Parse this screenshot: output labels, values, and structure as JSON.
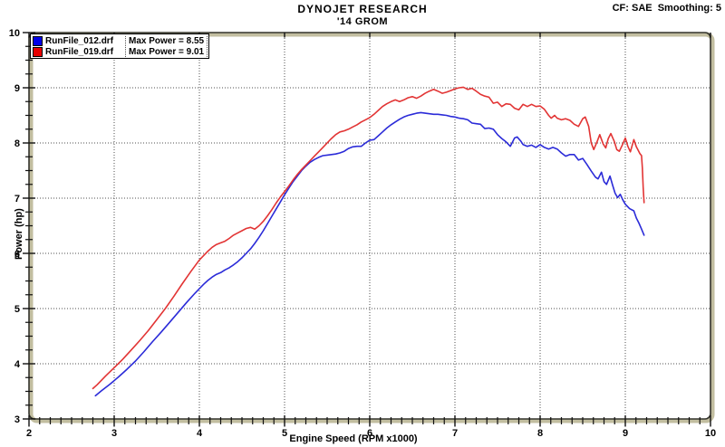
{
  "header": {
    "correction": "CF: SAE  Smoothing: 5"
  },
  "legend": {
    "entries": [
      {
        "file": "RunFile_012.drf",
        "max_power": "Max Power = 8.55",
        "swatch_color": "#0000e8"
      },
      {
        "file": "RunFile_019.drf",
        "max_power": "Max Power = 9.01",
        "swatch_color": "#e80000"
      }
    ]
  },
  "colors": {
    "background": "#ffffff",
    "frame_tan": "#c2bea0",
    "frame_dark": "#33332c",
    "grid": "#4f4f4f",
    "tick": "#111111",
    "text": "#000000",
    "blue_curve": "#2b2bd8",
    "red_curve": "#e23434"
  },
  "chart_data": {
    "type": "line",
    "title": "DYNOJET RESEARCH",
    "subtitle": "'14 GROM",
    "xlabel": "Engine Speed (RPM x1000)",
    "ylabel": "Power (hp)",
    "xlim": [
      2,
      10
    ],
    "ylim": [
      3,
      10
    ],
    "xticks": [
      2,
      3,
      4,
      5,
      6,
      7,
      8,
      9,
      10
    ],
    "yticks": [
      3,
      4,
      5,
      6,
      7,
      8,
      9,
      10
    ],
    "x_minor_step": 0.125,
    "y_minor_step": 0.25,
    "grid": "dotted-at-major-ticks",
    "legend_position": "top-left",
    "series": [
      {
        "name": "RunFile_012.drf",
        "max_power_hp": 8.55,
        "color": "#2b2bd8",
        "points": [
          [
            2.78,
            3.42
          ],
          [
            2.85,
            3.51
          ],
          [
            2.95,
            3.63
          ],
          [
            3.05,
            3.76
          ],
          [
            3.15,
            3.9
          ],
          [
            3.25,
            4.05
          ],
          [
            3.35,
            4.22
          ],
          [
            3.45,
            4.4
          ],
          [
            3.55,
            4.57
          ],
          [
            3.65,
            4.75
          ],
          [
            3.75,
            4.93
          ],
          [
            3.85,
            5.11
          ],
          [
            3.95,
            5.28
          ],
          [
            4.0,
            5.36
          ],
          [
            4.05,
            5.44
          ],
          [
            4.1,
            5.51
          ],
          [
            4.15,
            5.57
          ],
          [
            4.2,
            5.62
          ],
          [
            4.25,
            5.65
          ],
          [
            4.3,
            5.7
          ],
          [
            4.35,
            5.74
          ],
          [
            4.4,
            5.79
          ],
          [
            4.45,
            5.85
          ],
          [
            4.5,
            5.92
          ],
          [
            4.55,
            6.0
          ],
          [
            4.6,
            6.08
          ],
          [
            4.65,
            6.18
          ],
          [
            4.7,
            6.29
          ],
          [
            4.75,
            6.41
          ],
          [
            4.8,
            6.54
          ],
          [
            4.85,
            6.67
          ],
          [
            4.9,
            6.8
          ],
          [
            4.95,
            6.93
          ],
          [
            5.0,
            7.06
          ],
          [
            5.05,
            7.18
          ],
          [
            5.1,
            7.3
          ],
          [
            5.15,
            7.4
          ],
          [
            5.2,
            7.5
          ],
          [
            5.25,
            7.58
          ],
          [
            5.3,
            7.65
          ],
          [
            5.35,
            7.7
          ],
          [
            5.4,
            7.74
          ],
          [
            5.45,
            7.77
          ],
          [
            5.5,
            7.78
          ],
          [
            5.55,
            7.79
          ],
          [
            5.6,
            7.8
          ],
          [
            5.65,
            7.82
          ],
          [
            5.7,
            7.85
          ],
          [
            5.75,
            7.9
          ],
          [
            5.8,
            7.93
          ],
          [
            5.85,
            7.94
          ],
          [
            5.9,
            7.94
          ],
          [
            5.95,
            8.0
          ],
          [
            6.0,
            8.05
          ],
          [
            6.05,
            8.06
          ],
          [
            6.1,
            8.13
          ],
          [
            6.15,
            8.2
          ],
          [
            6.2,
            8.27
          ],
          [
            6.25,
            8.33
          ],
          [
            6.3,
            8.38
          ],
          [
            6.35,
            8.43
          ],
          [
            6.4,
            8.47
          ],
          [
            6.45,
            8.5
          ],
          [
            6.5,
            8.52
          ],
          [
            6.55,
            8.54
          ],
          [
            6.6,
            8.55
          ],
          [
            6.65,
            8.54
          ],
          [
            6.7,
            8.53
          ],
          [
            6.75,
            8.52
          ],
          [
            6.8,
            8.52
          ],
          [
            6.85,
            8.51
          ],
          [
            6.9,
            8.5
          ],
          [
            6.95,
            8.48
          ],
          [
            7.0,
            8.47
          ],
          [
            7.05,
            8.45
          ],
          [
            7.1,
            8.44
          ],
          [
            7.15,
            8.42
          ],
          [
            7.2,
            8.36
          ],
          [
            7.25,
            8.35
          ],
          [
            7.3,
            8.34
          ],
          [
            7.35,
            8.26
          ],
          [
            7.4,
            8.27
          ],
          [
            7.45,
            8.25
          ],
          [
            7.5,
            8.15
          ],
          [
            7.55,
            8.08
          ],
          [
            7.6,
            8.02
          ],
          [
            7.65,
            7.94
          ],
          [
            7.7,
            8.09
          ],
          [
            7.73,
            8.11
          ],
          [
            7.77,
            8.04
          ],
          [
            7.8,
            7.97
          ],
          [
            7.85,
            7.94
          ],
          [
            7.9,
            7.96
          ],
          [
            7.95,
            7.92
          ],
          [
            8.0,
            7.97
          ],
          [
            8.05,
            7.92
          ],
          [
            8.1,
            7.89
          ],
          [
            8.15,
            7.92
          ],
          [
            8.2,
            7.89
          ],
          [
            8.25,
            7.82
          ],
          [
            8.3,
            7.76
          ],
          [
            8.35,
            7.79
          ],
          [
            8.4,
            7.79
          ],
          [
            8.45,
            7.69
          ],
          [
            8.5,
            7.72
          ],
          [
            8.55,
            7.61
          ],
          [
            8.6,
            7.49
          ],
          [
            8.65,
            7.38
          ],
          [
            8.68,
            7.35
          ],
          [
            8.72,
            7.47
          ],
          [
            8.75,
            7.3
          ],
          [
            8.78,
            7.25
          ],
          [
            8.82,
            7.4
          ],
          [
            8.85,
            7.24
          ],
          [
            8.88,
            7.09
          ],
          [
            8.91,
            7.01
          ],
          [
            8.94,
            7.07
          ],
          [
            8.97,
            6.97
          ],
          [
            9.0,
            6.89
          ],
          [
            9.05,
            6.81
          ],
          [
            9.1,
            6.77
          ],
          [
            9.13,
            6.64
          ],
          [
            9.16,
            6.55
          ],
          [
            9.19,
            6.44
          ],
          [
            9.22,
            6.33
          ]
        ]
      },
      {
        "name": "RunFile_019.drf",
        "max_power_hp": 9.01,
        "color": "#e23434",
        "points": [
          [
            2.75,
            3.55
          ],
          [
            2.8,
            3.62
          ],
          [
            2.9,
            3.78
          ],
          [
            3.0,
            3.93
          ],
          [
            3.1,
            4.08
          ],
          [
            3.2,
            4.25
          ],
          [
            3.3,
            4.42
          ],
          [
            3.4,
            4.6
          ],
          [
            3.5,
            4.8
          ],
          [
            3.6,
            5.0
          ],
          [
            3.7,
            5.22
          ],
          [
            3.8,
            5.45
          ],
          [
            3.9,
            5.67
          ],
          [
            4.0,
            5.88
          ],
          [
            4.1,
            6.04
          ],
          [
            4.15,
            6.11
          ],
          [
            4.2,
            6.16
          ],
          [
            4.25,
            6.19
          ],
          [
            4.3,
            6.22
          ],
          [
            4.35,
            6.27
          ],
          [
            4.4,
            6.33
          ],
          [
            4.45,
            6.37
          ],
          [
            4.5,
            6.41
          ],
          [
            4.55,
            6.45
          ],
          [
            4.6,
            6.47
          ],
          [
            4.65,
            6.44
          ],
          [
            4.7,
            6.5
          ],
          [
            4.75,
            6.58
          ],
          [
            4.8,
            6.68
          ],
          [
            4.85,
            6.79
          ],
          [
            4.9,
            6.91
          ],
          [
            4.95,
            7.02
          ],
          [
            5.0,
            7.12
          ],
          [
            5.05,
            7.22
          ],
          [
            5.1,
            7.33
          ],
          [
            5.15,
            7.43
          ],
          [
            5.2,
            7.52
          ],
          [
            5.25,
            7.6
          ],
          [
            5.3,
            7.68
          ],
          [
            5.35,
            7.76
          ],
          [
            5.4,
            7.84
          ],
          [
            5.45,
            7.92
          ],
          [
            5.5,
            8.0
          ],
          [
            5.55,
            8.08
          ],
          [
            5.6,
            8.15
          ],
          [
            5.65,
            8.2
          ],
          [
            5.7,
            8.22
          ],
          [
            5.75,
            8.25
          ],
          [
            5.8,
            8.29
          ],
          [
            5.85,
            8.33
          ],
          [
            5.9,
            8.38
          ],
          [
            5.95,
            8.42
          ],
          [
            6.0,
            8.46
          ],
          [
            6.05,
            8.52
          ],
          [
            6.1,
            8.59
          ],
          [
            6.15,
            8.66
          ],
          [
            6.2,
            8.71
          ],
          [
            6.25,
            8.75
          ],
          [
            6.3,
            8.78
          ],
          [
            6.35,
            8.75
          ],
          [
            6.4,
            8.78
          ],
          [
            6.45,
            8.82
          ],
          [
            6.5,
            8.84
          ],
          [
            6.55,
            8.81
          ],
          [
            6.6,
            8.85
          ],
          [
            6.65,
            8.9
          ],
          [
            6.7,
            8.94
          ],
          [
            6.75,
            8.97
          ],
          [
            6.8,
            8.94
          ],
          [
            6.85,
            8.9
          ],
          [
            6.9,
            8.92
          ],
          [
            6.95,
            8.95
          ],
          [
            7.0,
            8.98
          ],
          [
            7.05,
            9.0
          ],
          [
            7.1,
            9.01
          ],
          [
            7.15,
            8.97
          ],
          [
            7.2,
            8.99
          ],
          [
            7.25,
            8.94
          ],
          [
            7.3,
            8.88
          ],
          [
            7.35,
            8.85
          ],
          [
            7.4,
            8.83
          ],
          [
            7.45,
            8.72
          ],
          [
            7.5,
            8.74
          ],
          [
            7.55,
            8.66
          ],
          [
            7.6,
            8.71
          ],
          [
            7.65,
            8.7
          ],
          [
            7.7,
            8.63
          ],
          [
            7.75,
            8.6
          ],
          [
            7.8,
            8.7
          ],
          [
            7.85,
            8.66
          ],
          [
            7.9,
            8.7
          ],
          [
            7.95,
            8.66
          ],
          [
            8.0,
            8.67
          ],
          [
            8.05,
            8.61
          ],
          [
            8.1,
            8.5
          ],
          [
            8.13,
            8.45
          ],
          [
            8.17,
            8.5
          ],
          [
            8.2,
            8.45
          ],
          [
            8.25,
            8.42
          ],
          [
            8.3,
            8.44
          ],
          [
            8.35,
            8.41
          ],
          [
            8.4,
            8.34
          ],
          [
            8.45,
            8.3
          ],
          [
            8.5,
            8.44
          ],
          [
            8.53,
            8.47
          ],
          [
            8.57,
            8.3
          ],
          [
            8.6,
            8.0
          ],
          [
            8.63,
            7.88
          ],
          [
            8.67,
            8.03
          ],
          [
            8.7,
            8.15
          ],
          [
            8.74,
            7.98
          ],
          [
            8.77,
            7.91
          ],
          [
            8.8,
            8.08
          ],
          [
            8.83,
            8.17
          ],
          [
            8.87,
            8.03
          ],
          [
            8.9,
            7.88
          ],
          [
            8.93,
            7.85
          ],
          [
            8.97,
            7.98
          ],
          [
            9.0,
            8.09
          ],
          [
            9.03,
            7.94
          ],
          [
            9.06,
            7.84
          ],
          [
            9.1,
            8.06
          ],
          [
            9.13,
            7.93
          ],
          [
            9.15,
            7.87
          ],
          [
            9.17,
            7.81
          ],
          [
            9.19,
            7.77
          ],
          [
            9.2,
            7.55
          ],
          [
            9.21,
            7.2
          ],
          [
            9.22,
            6.92
          ]
        ]
      }
    ]
  }
}
